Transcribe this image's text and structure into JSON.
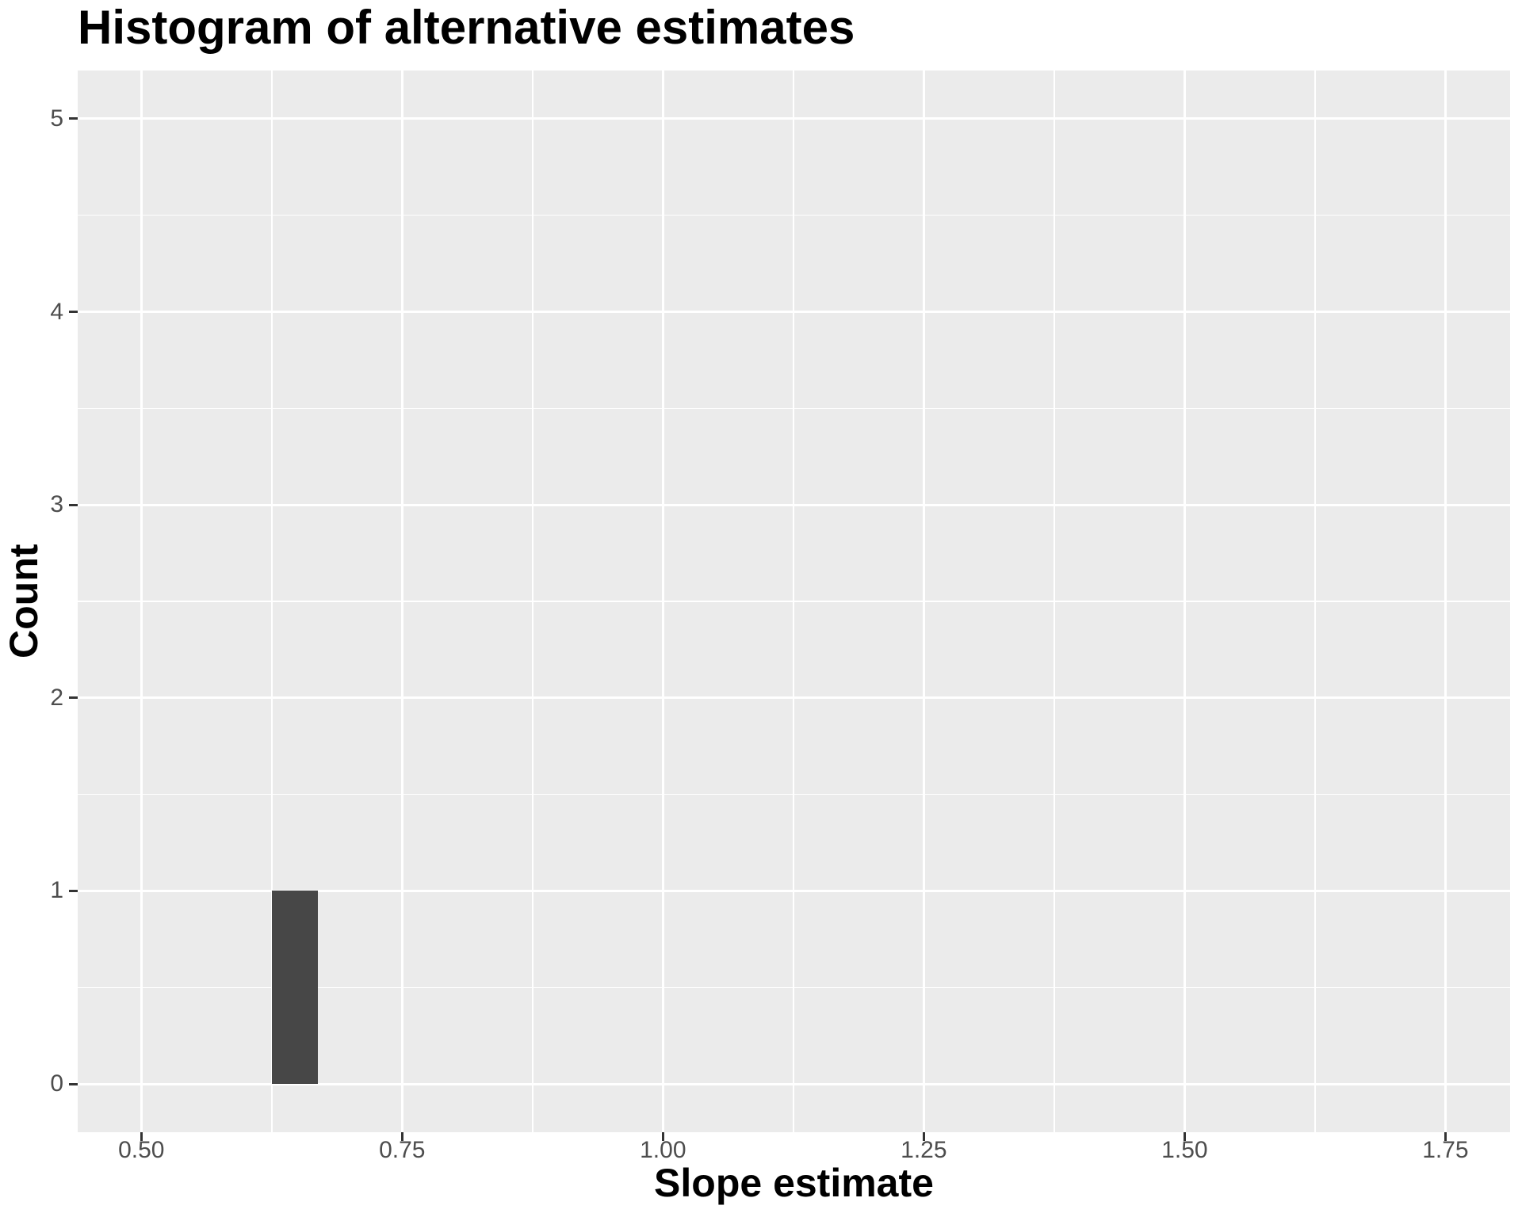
{
  "chart_data": {
    "type": "bar",
    "subtype": "histogram",
    "title": "Histogram of alternative estimates",
    "xlabel": "Slope estimate",
    "ylabel": "Count",
    "xlim": [
      0.439,
      1.812
    ],
    "ylim": [
      -0.25,
      5.25
    ],
    "x_ticks": [
      {
        "value": 0.5,
        "label": "0.50"
      },
      {
        "value": 0.75,
        "label": "0.75"
      },
      {
        "value": 1.0,
        "label": "1.00"
      },
      {
        "value": 1.25,
        "label": "1.25"
      },
      {
        "value": 1.5,
        "label": "1.50"
      },
      {
        "value": 1.75,
        "label": "1.75"
      }
    ],
    "y_ticks": [
      {
        "value": 0,
        "label": "0"
      },
      {
        "value": 1,
        "label": "1"
      },
      {
        "value": 2,
        "label": "2"
      },
      {
        "value": 3,
        "label": "3"
      },
      {
        "value": 4,
        "label": "4"
      },
      {
        "value": 5,
        "label": "5"
      }
    ],
    "x_minor_ticks": [
      0.625,
      0.875,
      1.125,
      1.375,
      1.625
    ],
    "y_minor_ticks": [
      0.5,
      1.5,
      2.5,
      3.5,
      4.5
    ],
    "bars": [
      {
        "x0": 0.625,
        "x1": 0.669,
        "count": 1
      }
    ],
    "grid": "major and minor gridlines on",
    "legend_position": "none",
    "colors": {
      "panel_bg": "#EBEBEB",
      "gridline": "#FFFFFF",
      "bar_fill": "#474747",
      "tick_mark": "#333333",
      "tick_label": "#4D4D4D",
      "title_text": "#000000",
      "background": "#FFFFFF"
    }
  }
}
